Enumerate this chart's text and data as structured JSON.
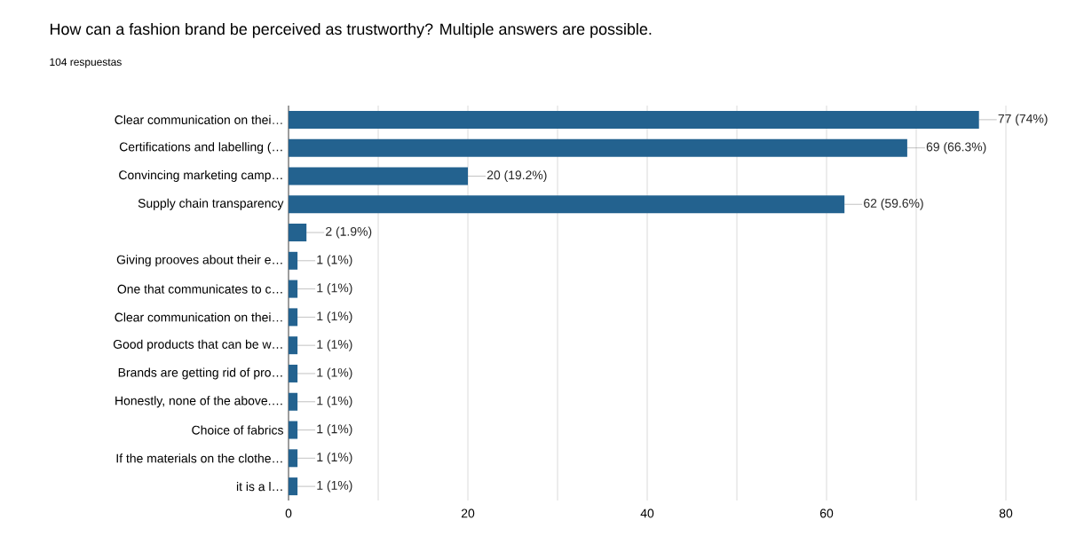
{
  "chart_data": {
    "type": "bar",
    "orientation": "horizontal",
    "title": "How can a fashion brand be perceived as trustworthy? Multiple answers are possible.",
    "subtitle": "104 respuestas",
    "categories": [
      "Clear communication on thei…",
      "Certifications and labelling (…",
      "Convincing marketing camp…",
      "Supply chain transparency",
      null,
      "Giving prooves about their e…",
      "One that communicates to c…",
      "Clear communication on thei…",
      "Good products that can be w…",
      "Brands are getting rid of pro…",
      "Honestly, none of the above.…",
      "Choice of fabrics",
      "If the materials on the clothe…",
      "it is a l…"
    ],
    "values": [
      77,
      69,
      20,
      62,
      2,
      1,
      1,
      1,
      1,
      1,
      1,
      1,
      1,
      1
    ],
    "value_labels": [
      "77 (74%)",
      "69 (66.3%)",
      "20 (19.2%)",
      "62 (59.6%)",
      "2 (1.9%)",
      "1 (1%)",
      "1 (1%)",
      "1 (1%)",
      "1 (1%)",
      "1 (1%)",
      "1 (1%)",
      "1 (1%)",
      "1 (1%)",
      "1 (1%)"
    ],
    "color": "#23628f",
    "xlim": [
      0,
      80
    ],
    "xticks": [
      0,
      {
        "value": 10,
        "label": null
      },
      20,
      {
        "value": 30,
        "label": null
      },
      40,
      {
        "value": 50,
        "label": null
      },
      60,
      {
        "value": 70,
        "label": null
      },
      80
    ],
    "grid": "x"
  }
}
